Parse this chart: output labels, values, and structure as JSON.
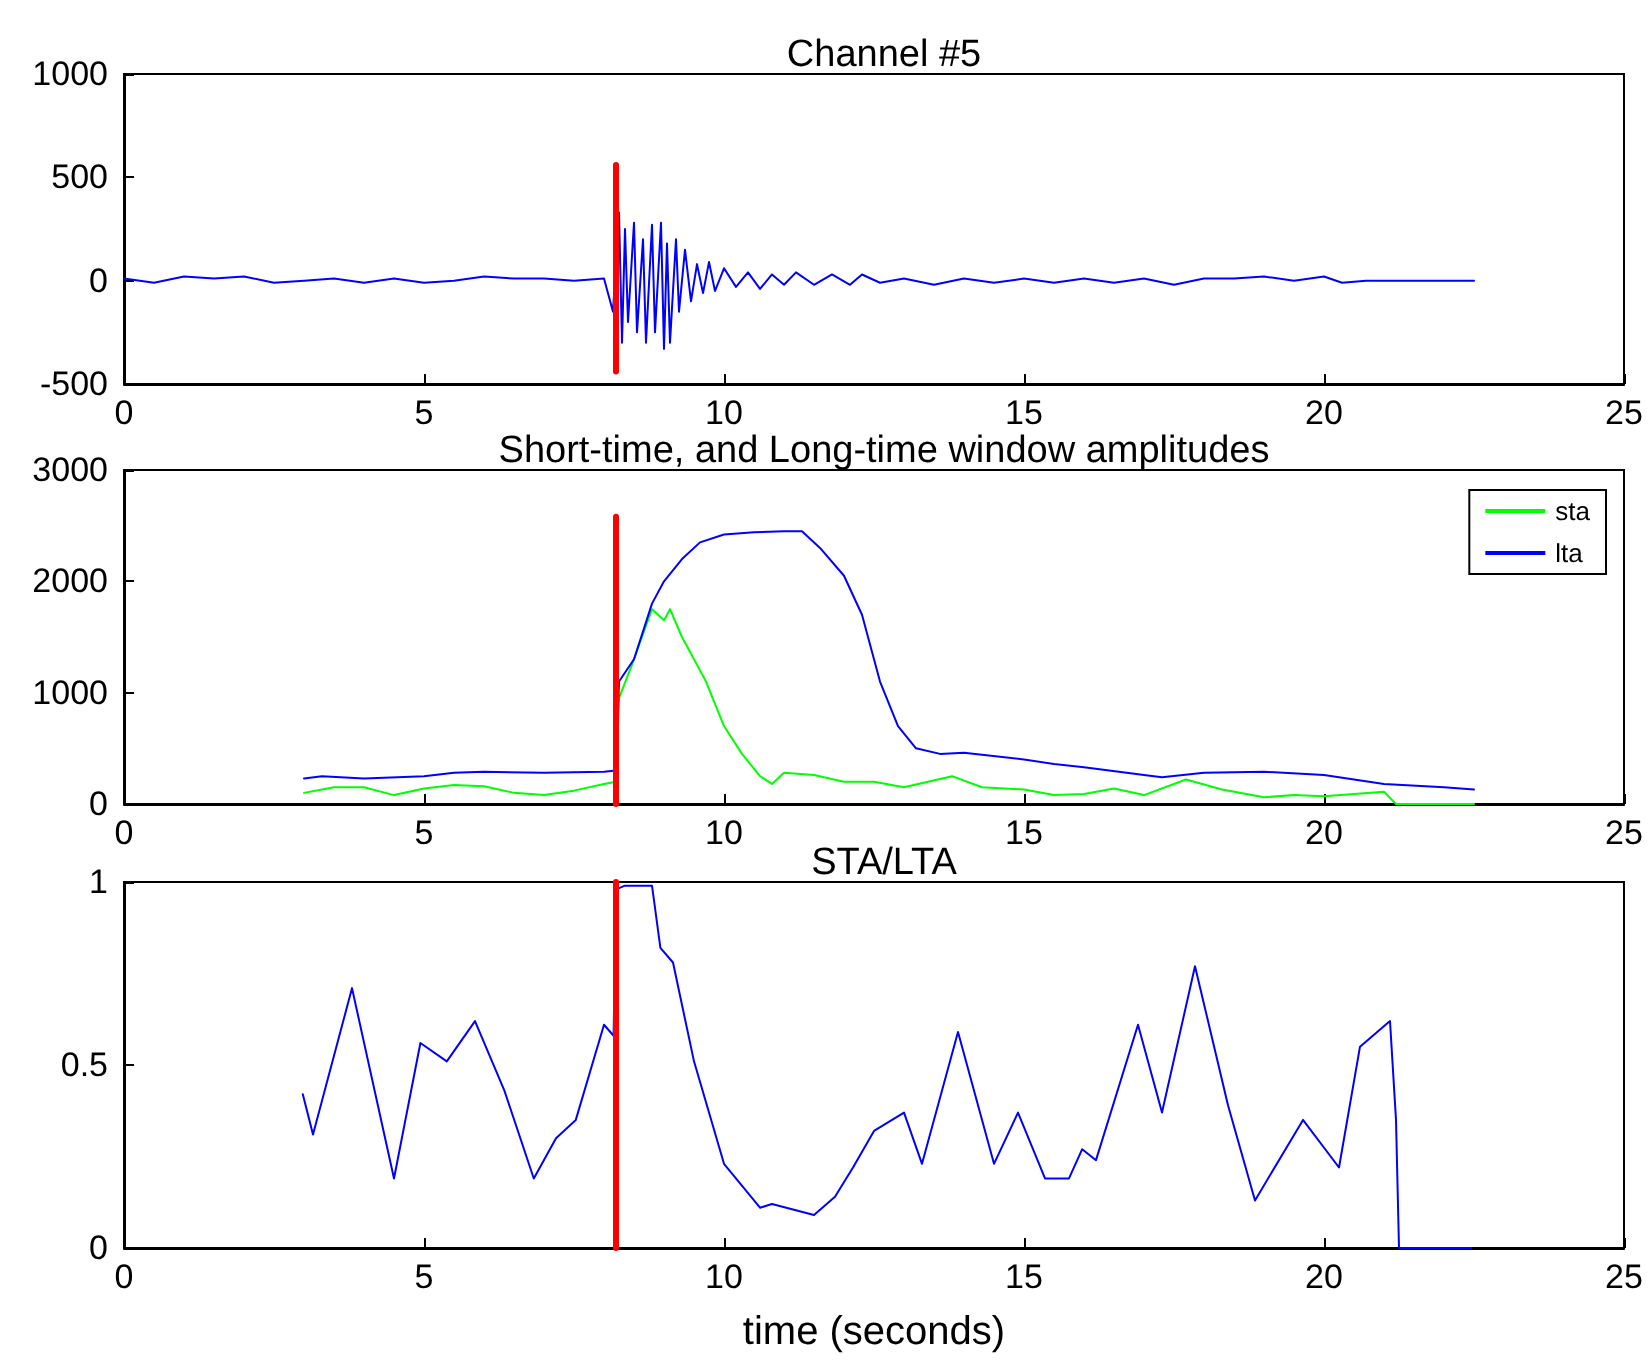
{
  "chart_data": [
    {
      "type": "line",
      "title": "Channel #5",
      "xlim": [
        0,
        25
      ],
      "xticks": [
        0,
        5,
        10,
        15,
        20,
        25
      ],
      "ylim": [
        -500,
        1000
      ],
      "yticks": [
        -500,
        0,
        500,
        1000
      ],
      "grid": false,
      "legend": false,
      "marker": "none",
      "series": [
        {
          "color": "#0000ff",
          "x": [
            0,
            0.5,
            1,
            1.5,
            2,
            2.5,
            3,
            3.5,
            4,
            4.5,
            5,
            5.5,
            6,
            6.5,
            7,
            7.5,
            8,
            8.15,
            8.25,
            8.3,
            8.35,
            8.4,
            8.5,
            8.55,
            8.65,
            8.7,
            8.8,
            8.85,
            8.95,
            9.0,
            9.05,
            9.1,
            9.2,
            9.25,
            9.35,
            9.45,
            9.55,
            9.65,
            9.75,
            9.85,
            10,
            10.2,
            10.4,
            10.6,
            10.8,
            11,
            11.2,
            11.5,
            11.8,
            12.1,
            12.3,
            12.6,
            13,
            13.5,
            14,
            14.5,
            15,
            15.5,
            16,
            16.5,
            17,
            17.5,
            18,
            18.5,
            19,
            19.5,
            20,
            20.3,
            20.7,
            22.5
          ],
          "values": [
            10,
            -10,
            20,
            10,
            20,
            -10,
            0,
            10,
            -10,
            10,
            -10,
            0,
            20,
            10,
            10,
            0,
            10,
            -150,
            330,
            -300,
            250,
            -200,
            280,
            -250,
            200,
            -300,
            270,
            -250,
            280,
            -330,
            180,
            -300,
            200,
            -150,
            150,
            -100,
            80,
            -60,
            90,
            -50,
            60,
            -30,
            40,
            -40,
            30,
            -20,
            40,
            -20,
            30,
            -20,
            30,
            -10,
            10,
            -20,
            10,
            -10,
            10,
            -10,
            10,
            -10,
            10,
            -20,
            10,
            10,
            20,
            0,
            20,
            -10,
            0,
            0
          ]
        },
        {
          "color": "#ff0000",
          "x": [
            8.2,
            8.2
          ],
          "values": [
            -440,
            560
          ]
        }
      ]
    },
    {
      "type": "line",
      "title": "Short-time, and Long-time window amplitudes",
      "xlim": [
        0,
        25
      ],
      "xticks": [
        0,
        5,
        10,
        15,
        20,
        25
      ],
      "ylim": [
        0,
        3000
      ],
      "yticks": [
        0,
        1000,
        2000,
        3000
      ],
      "grid": false,
      "legend": "top right",
      "marker": "none",
      "series": [
        {
          "name": "sta",
          "color": "#00ff00",
          "x": [
            3,
            3.5,
            4,
            4.5,
            5,
            5.5,
            6,
            6.5,
            7,
            7.5,
            8,
            8.2,
            8.25,
            8.5,
            8.8,
            9,
            9.1,
            9.3,
            9.6,
            9.7,
            10,
            10.3,
            10.6,
            10.8,
            11,
            11.5,
            12,
            12.5,
            13,
            13.8,
            14.3,
            15,
            15.5,
            16,
            16.5,
            17,
            17.7,
            18.3,
            19,
            19.5,
            20,
            20.5,
            21,
            21.2,
            22.5
          ],
          "values": [
            100,
            150,
            150,
            80,
            140,
            170,
            160,
            100,
            80,
            120,
            180,
            200,
            950,
            1300,
            1750,
            1650,
            1750,
            1500,
            1200,
            1100,
            700,
            450,
            250,
            180,
            280,
            260,
            200,
            200,
            150,
            250,
            150,
            130,
            80,
            90,
            140,
            80,
            220,
            130,
            60,
            80,
            70,
            90,
            110,
            0,
            0
          ]
        },
        {
          "name": "lta",
          "color": "#0000ff",
          "x": [
            3,
            3.3,
            4,
            5,
            5.5,
            6,
            7,
            8,
            8.2,
            8.25,
            8.5,
            8.8,
            9,
            9.3,
            9.6,
            10,
            10.5,
            11,
            11.3,
            11.6,
            12,
            12.3,
            12.6,
            12.9,
            13.2,
            13.6,
            14,
            15,
            15.5,
            16,
            17,
            17.3,
            18,
            19,
            20,
            20.5,
            21,
            22,
            22.5
          ],
          "values": [
            230,
            250,
            230,
            250,
            280,
            290,
            280,
            290,
            300,
            1100,
            1300,
            1800,
            2000,
            2200,
            2350,
            2420,
            2440,
            2450,
            2450,
            2300,
            2050,
            1700,
            1100,
            700,
            500,
            450,
            460,
            400,
            360,
            330,
            260,
            240,
            280,
            290,
            260,
            220,
            180,
            150,
            130
          ]
        },
        {
          "color": "#ff0000",
          "x": [
            8.2,
            8.2
          ],
          "values": [
            0,
            2580
          ]
        }
      ]
    },
    {
      "type": "line",
      "title": "STA/LTA",
      "xlabel": "time (seconds)",
      "xlim": [
        0,
        25
      ],
      "xticks": [
        0,
        5,
        10,
        15,
        20,
        25
      ],
      "ylim": [
        0,
        1
      ],
      "yticks": [
        0,
        0.5,
        1
      ],
      "grid": false,
      "legend": false,
      "marker": "none",
      "series": [
        {
          "color": "#0000ff",
          "x": [
            2.98,
            3.15,
            3.8,
            4.5,
            4.94,
            5.38,
            5.85,
            6.34,
            6.83,
            7.2,
            7.53,
            8.0,
            8.16,
            8.2,
            8.35,
            8.8,
            8.94,
            9.15,
            9.5,
            10.0,
            10.6,
            10.8,
            11.5,
            11.85,
            12.15,
            12.5,
            13.0,
            13.3,
            13.9,
            14.5,
            14.9,
            15.35,
            15.75,
            15.97,
            16.2,
            16.9,
            17.3,
            17.85,
            18.4,
            18.85,
            19.65,
            20.25,
            20.6,
            21.1,
            21.2,
            21.25,
            22.45
          ],
          "values": [
            0.42,
            0.31,
            0.71,
            0.19,
            0.56,
            0.51,
            0.62,
            0.43,
            0.19,
            0.3,
            0.35,
            0.61,
            0.58,
            0.98,
            0.99,
            0.99,
            0.82,
            0.78,
            0.51,
            0.23,
            0.11,
            0.12,
            0.09,
            0.14,
            0.22,
            0.32,
            0.37,
            0.23,
            0.59,
            0.23,
            0.37,
            0.19,
            0.19,
            0.27,
            0.24,
            0.61,
            0.37,
            0.77,
            0.39,
            0.13,
            0.35,
            0.22,
            0.55,
            0.62,
            0.35,
            0,
            0
          ]
        },
        {
          "color": "#ff0000",
          "x": [
            8.2,
            8.2
          ],
          "values": [
            0,
            1
          ]
        }
      ]
    }
  ]
}
